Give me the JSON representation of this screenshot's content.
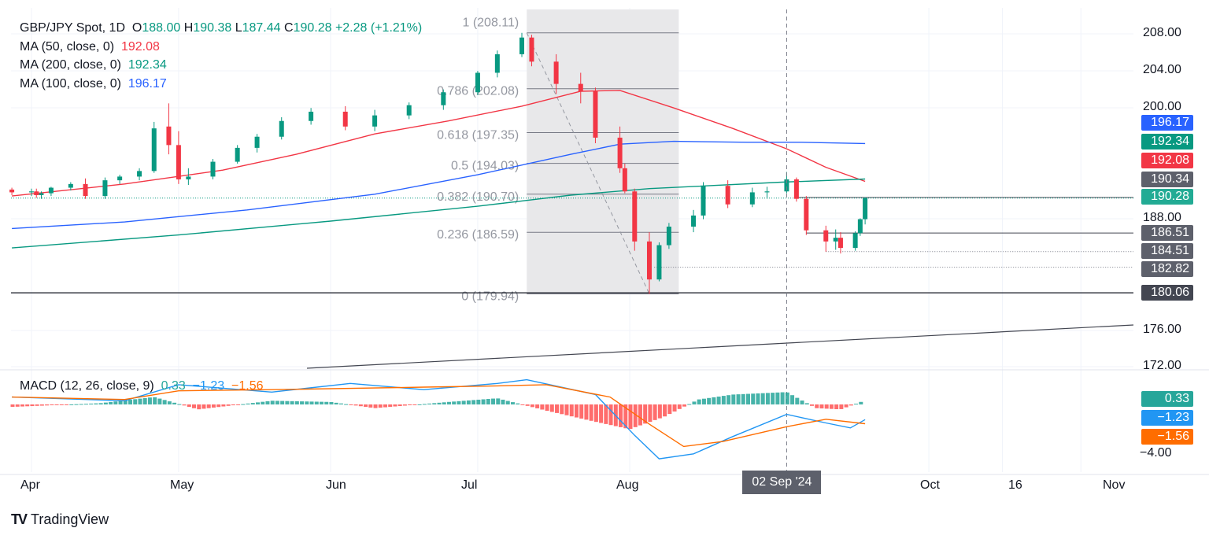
{
  "header": {
    "symbol": "GBP/JPY Spot, 1D",
    "open_label": "O",
    "open": "188.00",
    "high_label": "H",
    "high": "190.38",
    "low_label": "L",
    "low": "187.44",
    "close_label": "C",
    "close": "190.28",
    "change": "+2.28 (+1.21%)"
  },
  "indicators": [
    {
      "label": "MA (50, close, 0)",
      "value": "192.08",
      "color": "#f23645"
    },
    {
      "label": "MA (200, close, 0)",
      "value": "192.34",
      "color": "#089981"
    },
    {
      "label": "MA (100, close, 0)",
      "value": "196.17",
      "color": "#2962ff"
    }
  ],
  "macd": {
    "label": "MACD (12, 26, close, 9)",
    "hist": "0.33",
    "macd": "−1.23",
    "signal": "−1.56",
    "hist_color": "#26a69a",
    "macd_color": "#2196f3",
    "signal_color": "#ff6d00"
  },
  "price_axis": {
    "ticks": [
      "208.00",
      "204.00",
      "200.00",
      "188.00",
      "176.00",
      "172.00"
    ],
    "range": [
      172,
      210
    ]
  },
  "macd_axis": {
    "ticks": [
      "−4.00"
    ]
  },
  "price_labels": [
    {
      "value": "196.17",
      "color": "#2962ff"
    },
    {
      "value": "192.34",
      "color": "#089981"
    },
    {
      "value": "192.08",
      "color": "#f23645"
    },
    {
      "value": "190.34",
      "color": "#5d606b"
    },
    {
      "value": "190.28",
      "color": "#22ab94"
    },
    {
      "value": "186.51",
      "color": "#5d606b"
    },
    {
      "value": "184.51",
      "color": "#5d606b"
    },
    {
      "value": "182.82",
      "color": "#5d606b"
    },
    {
      "value": "180.06",
      "color": "#434651"
    }
  ],
  "macd_labels": [
    {
      "value": "0.33",
      "color": "#26a69a"
    },
    {
      "value": "−1.23",
      "color": "#2196f3"
    },
    {
      "value": "−1.56",
      "color": "#ff6d00"
    }
  ],
  "fib_levels": [
    {
      "ratio": "1",
      "label": "1 (208.11)",
      "price": 208.11
    },
    {
      "ratio": "0.786",
      "label": "0.786 (202.08)",
      "price": 202.08
    },
    {
      "ratio": "0.618",
      "label": "0.618 (197.35)",
      "price": 197.35
    },
    {
      "ratio": "0.5",
      "label": "0.5 (194.03)",
      "price": 194.03
    },
    {
      "ratio": "0.382",
      "label": "0.382 (190.70)",
      "price": 190.7
    },
    {
      "ratio": "0.236",
      "label": "0.236 (186.59)",
      "price": 186.59
    },
    {
      "ratio": "0",
      "label": "0 (179.94)",
      "price": 179.94
    }
  ],
  "time_axis": [
    "Apr",
    "May",
    "Jun",
    "Jul",
    "Aug",
    "Oct",
    "16",
    "Nov"
  ],
  "crosshair_date": "02 Sep '24",
  "brand": "TradingView",
  "chart_data": {
    "type": "candlestick",
    "title": "GBP/JPY Spot, 1D",
    "ylim": [
      172,
      210
    ],
    "candles_approx": [
      {
        "date": "2024-03-28",
        "o": 191.2,
        "h": 191.4,
        "l": 190.6,
        "c": 190.9
      },
      {
        "date": "2024-04-01",
        "o": 190.9,
        "h": 191.3,
        "l": 190.5,
        "c": 191.0
      },
      {
        "date": "2024-04-02",
        "o": 191.0,
        "h": 191.3,
        "l": 190.3,
        "c": 190.6
      },
      {
        "date": "2024-04-03",
        "o": 190.6,
        "h": 191.0,
        "l": 190.2,
        "c": 190.8
      },
      {
        "date": "2024-04-05",
        "o": 190.8,
        "h": 191.5,
        "l": 190.5,
        "c": 191.4
      },
      {
        "date": "2024-04-09",
        "o": 191.4,
        "h": 192.0,
        "l": 191.1,
        "c": 191.8
      },
      {
        "date": "2024-04-12",
        "o": 191.8,
        "h": 192.4,
        "l": 190.2,
        "c": 190.5
      },
      {
        "date": "2024-04-16",
        "o": 190.5,
        "h": 192.5,
        "l": 190.2,
        "c": 192.2
      },
      {
        "date": "2024-04-19",
        "o": 192.2,
        "h": 192.8,
        "l": 191.8,
        "c": 192.6
      },
      {
        "date": "2024-04-23",
        "o": 192.6,
        "h": 193.5,
        "l": 192.2,
        "c": 193.2
      },
      {
        "date": "2024-04-26",
        "o": 193.2,
        "h": 198.5,
        "l": 193.0,
        "c": 197.8
      },
      {
        "date": "2024-04-29",
        "o": 198.0,
        "h": 200.5,
        "l": 195.0,
        "c": 196.0
      },
      {
        "date": "2024-05-01",
        "o": 196.0,
        "h": 197.5,
        "l": 191.8,
        "c": 192.3
      },
      {
        "date": "2024-05-03",
        "o": 192.3,
        "h": 193.5,
        "l": 191.7,
        "c": 192.6
      },
      {
        "date": "2024-05-08",
        "o": 192.6,
        "h": 194.5,
        "l": 192.3,
        "c": 194.2
      },
      {
        "date": "2024-05-13",
        "o": 194.2,
        "h": 196.0,
        "l": 194.0,
        "c": 195.7
      },
      {
        "date": "2024-05-17",
        "o": 195.7,
        "h": 197.2,
        "l": 195.2,
        "c": 196.9
      },
      {
        "date": "2024-05-22",
        "o": 196.9,
        "h": 199.0,
        "l": 196.6,
        "c": 198.6
      },
      {
        "date": "2024-05-28",
        "o": 198.6,
        "h": 200.0,
        "l": 198.2,
        "c": 199.6
      },
      {
        "date": "2024-06-04",
        "o": 199.6,
        "h": 200.2,
        "l": 197.6,
        "c": 198.0
      },
      {
        "date": "2024-06-10",
        "o": 198.0,
        "h": 199.8,
        "l": 197.5,
        "c": 199.2
      },
      {
        "date": "2024-06-17",
        "o": 199.2,
        "h": 200.6,
        "l": 198.8,
        "c": 200.3
      },
      {
        "date": "2024-06-24",
        "o": 200.3,
        "h": 202.0,
        "l": 199.8,
        "c": 201.7
      },
      {
        "date": "2024-07-01",
        "o": 201.7,
        "h": 204.0,
        "l": 201.4,
        "c": 203.8
      },
      {
        "date": "2024-07-05",
        "o": 203.8,
        "h": 206.2,
        "l": 203.3,
        "c": 205.8
      },
      {
        "date": "2024-07-10",
        "o": 205.8,
        "h": 208.11,
        "l": 205.5,
        "c": 207.6
      },
      {
        "date": "2024-07-12",
        "o": 207.6,
        "h": 207.9,
        "l": 204.5,
        "c": 205.0
      },
      {
        "date": "2024-07-17",
        "o": 205.0,
        "h": 205.8,
        "l": 201.5,
        "c": 202.6
      },
      {
        "date": "2024-07-22",
        "o": 202.6,
        "h": 203.8,
        "l": 200.5,
        "c": 201.8
      },
      {
        "date": "2024-07-25",
        "o": 201.8,
        "h": 202.2,
        "l": 196.2,
        "c": 196.8
      },
      {
        "date": "2024-07-30",
        "o": 196.8,
        "h": 198.0,
        "l": 193.0,
        "c": 193.5
      },
      {
        "date": "2024-07-31",
        "o": 193.5,
        "h": 194.0,
        "l": 190.8,
        "c": 191.0
      },
      {
        "date": "2024-08-02",
        "o": 191.0,
        "h": 191.3,
        "l": 184.6,
        "c": 185.6
      },
      {
        "date": "2024-08-05",
        "o": 185.6,
        "h": 186.6,
        "l": 179.94,
        "c": 181.5
      },
      {
        "date": "2024-08-07",
        "o": 181.5,
        "h": 185.5,
        "l": 181.3,
        "c": 185.2
      },
      {
        "date": "2024-08-09",
        "o": 185.2,
        "h": 187.6,
        "l": 184.8,
        "c": 187.2
      },
      {
        "date": "2024-08-14",
        "o": 187.2,
        "h": 189.0,
        "l": 186.6,
        "c": 188.4
      },
      {
        "date": "2024-08-16",
        "o": 188.4,
        "h": 192.0,
        "l": 188.0,
        "c": 191.6
      },
      {
        "date": "2024-08-21",
        "o": 191.6,
        "h": 192.2,
        "l": 189.2,
        "c": 189.6
      },
      {
        "date": "2024-08-26",
        "o": 189.6,
        "h": 191.4,
        "l": 189.3,
        "c": 190.9
      },
      {
        "date": "2024-08-29",
        "o": 190.9,
        "h": 191.5,
        "l": 190.2,
        "c": 191.0
      },
      {
        "date": "2024-09-02",
        "o": 191.0,
        "h": 193.1,
        "l": 190.8,
        "c": 192.3
      },
      {
        "date": "2024-09-04",
        "o": 192.3,
        "h": 192.5,
        "l": 189.9,
        "c": 190.2
      },
      {
        "date": "2024-09-06",
        "o": 190.2,
        "h": 190.5,
        "l": 186.3,
        "c": 186.8
      },
      {
        "date": "2024-09-10",
        "o": 186.8,
        "h": 187.3,
        "l": 184.5,
        "c": 185.6
      },
      {
        "date": "2024-09-12",
        "o": 185.6,
        "h": 186.9,
        "l": 184.7,
        "c": 186.0
      },
      {
        "date": "2024-09-13",
        "o": 186.0,
        "h": 186.6,
        "l": 184.3,
        "c": 184.9
      },
      {
        "date": "2024-09-16",
        "o": 184.9,
        "h": 186.7,
        "l": 184.6,
        "c": 186.5
      },
      {
        "date": "2024-09-17",
        "o": 186.5,
        "h": 188.1,
        "l": 186.2,
        "c": 188.0
      },
      {
        "date": "2024-09-18",
        "o": 188.0,
        "h": 190.38,
        "l": 187.44,
        "c": 190.28
      }
    ],
    "series": [
      {
        "name": "MA (50, close, 0)",
        "last": 192.08
      },
      {
        "name": "MA (200, close, 0)",
        "last": 192.34
      },
      {
        "name": "MA (100, close, 0)",
        "last": 196.17
      }
    ],
    "horizontal_levels": [
      190.34,
      186.51,
      184.51,
      182.82,
      180.06
    ]
  }
}
